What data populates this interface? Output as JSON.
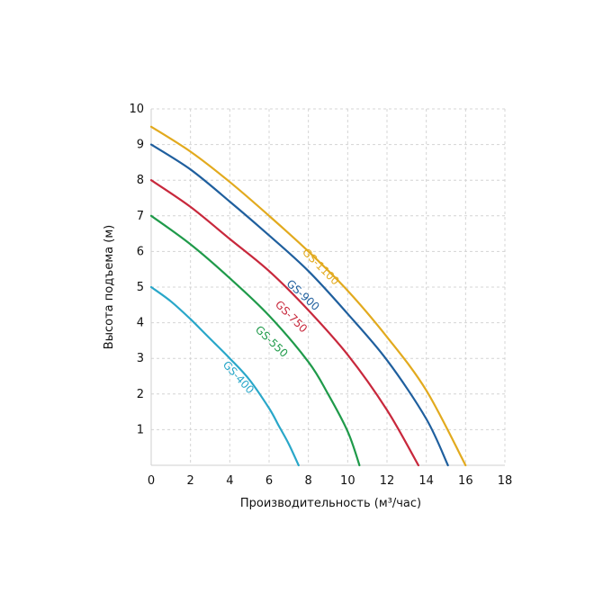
{
  "chart_data": {
    "type": "line",
    "title": "",
    "xlabel": "Производительность (м³/час)",
    "ylabel": "Высота подъема (м)",
    "xlim": [
      0,
      18
    ],
    "ylim": [
      0,
      10
    ],
    "xticks": [
      "0",
      "2",
      "4",
      "6",
      "8",
      "10",
      "12",
      "14",
      "16",
      "18"
    ],
    "yticks": [
      "1",
      "2",
      "3",
      "4",
      "5",
      "6",
      "7",
      "8",
      "9",
      "10"
    ],
    "grid": true,
    "legend": "none",
    "series": [
      {
        "name": "GS-400",
        "color": "#29a7c9",
        "x": [
          0,
          1,
          2,
          3,
          4,
          5,
          6,
          6.5,
          7,
          7.5
        ],
        "y": [
          5.0,
          4.6,
          4.1,
          3.55,
          3.0,
          2.4,
          1.6,
          1.1,
          0.6,
          0
        ],
        "label_at": [
          4.3,
          2.4
        ]
      },
      {
        "name": "GS-550",
        "color": "#1f9a4a",
        "x": [
          0,
          2,
          4,
          6,
          8,
          9,
          10,
          10.6
        ],
        "y": [
          7.0,
          6.2,
          5.25,
          4.2,
          2.9,
          2.0,
          0.95,
          0
        ],
        "label_at": [
          6.0,
          3.4
        ]
      },
      {
        "name": "GS-750",
        "color": "#c8283c",
        "x": [
          0,
          2,
          4,
          6,
          8,
          10,
          12,
          13.6
        ],
        "y": [
          8.0,
          7.25,
          6.35,
          5.45,
          4.35,
          3.1,
          1.55,
          0
        ],
        "label_at": [
          7.0,
          4.1
        ]
      },
      {
        "name": "GS-900",
        "color": "#1f5f9e",
        "x": [
          0,
          2,
          4,
          6,
          8,
          10,
          12,
          14,
          15.1
        ],
        "y": [
          9.0,
          8.3,
          7.4,
          6.45,
          5.45,
          4.25,
          2.95,
          1.3,
          0
        ],
        "label_at": [
          7.6,
          4.7
        ]
      },
      {
        "name": "GS-1100",
        "color": "#e2aa1e",
        "x": [
          0,
          2,
          4,
          6,
          8,
          10,
          12,
          14,
          16
        ],
        "y": [
          9.5,
          8.8,
          7.95,
          7.0,
          6.0,
          4.9,
          3.6,
          2.1,
          0
        ],
        "label_at": [
          8.5,
          5.5
        ]
      }
    ]
  }
}
